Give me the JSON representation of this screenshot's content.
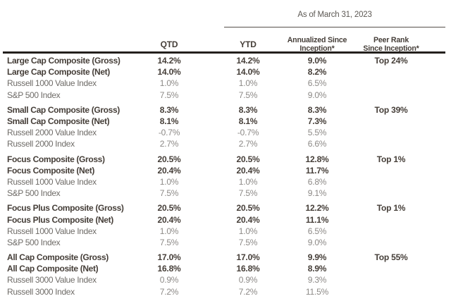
{
  "as_of_label": "As of March 31, 2023",
  "columns": {
    "qtd": "QTD",
    "ytd": "YTD",
    "annualized_line1": "Annualized Since",
    "annualized_line2": "Inception*",
    "peer_line1": "Peer Rank",
    "peer_line2": "Since Inception*"
  },
  "colors": {
    "text_dark": "#453e38",
    "text_gray": "#6f6c68",
    "value_gray": "#8c8986",
    "rule_heavy": "#24201d",
    "rule_light": "#55504b",
    "background": "#ffffff"
  },
  "groups": [
    {
      "rows": [
        {
          "label": "Large Cap Composite (Gross)",
          "style": "bold",
          "qtd": "14.2%",
          "ytd": "14.2%",
          "annualized": "9.0%",
          "peer_rank": "Top 24%"
        },
        {
          "label": "Large Cap Composite (Net)",
          "style": "bold",
          "qtd": "14.0%",
          "ytd": "14.0%",
          "annualized": "8.2%",
          "peer_rank": ""
        },
        {
          "label": "Russell 1000 Value Index",
          "style": "regular",
          "qtd": "1.0%",
          "ytd": "1.0%",
          "annualized": "6.5%",
          "peer_rank": ""
        },
        {
          "label": "S&P 500 Index",
          "style": "regular",
          "qtd": "7.5%",
          "ytd": "7.5%",
          "annualized": "9.0%",
          "peer_rank": ""
        }
      ]
    },
    {
      "rows": [
        {
          "label": "Small Cap Composite (Gross)",
          "style": "bold",
          "qtd": "8.3%",
          "ytd": "8.3%",
          "annualized": "8.3%",
          "peer_rank": "Top 39%"
        },
        {
          "label": "Small Cap Composite (Net)",
          "style": "bold",
          "qtd": "8.1%",
          "ytd": "8.1%",
          "annualized": "7.3%",
          "peer_rank": ""
        },
        {
          "label": "Russell 2000 Value Index",
          "style": "regular",
          "qtd": "-0.7%",
          "ytd": "-0.7%",
          "annualized": "5.5%",
          "peer_rank": ""
        },
        {
          "label": "Russell 2000 Index",
          "style": "regular",
          "qtd": "2.7%",
          "ytd": "2.7%",
          "annualized": "6.6%",
          "peer_rank": ""
        }
      ]
    },
    {
      "rows": [
        {
          "label": "Focus Composite (Gross)",
          "style": "bold",
          "qtd": "20.5%",
          "ytd": "20.5%",
          "annualized": "12.8%",
          "peer_rank": "Top 1%"
        },
        {
          "label": "Focus Composite (Net)",
          "style": "bold",
          "qtd": "20.4%",
          "ytd": "20.4%",
          "annualized": "11.7%",
          "peer_rank": ""
        },
        {
          "label": "Russell 1000 Value Index",
          "style": "regular",
          "qtd": "1.0%",
          "ytd": "1.0%",
          "annualized": "6.8%",
          "peer_rank": ""
        },
        {
          "label": "S&P 500 Index",
          "style": "regular",
          "qtd": "7.5%",
          "ytd": "7.5%",
          "annualized": "9.1%",
          "peer_rank": ""
        }
      ]
    },
    {
      "rows": [
        {
          "label": "Focus Plus Composite (Gross)",
          "style": "bold",
          "qtd": "20.5%",
          "ytd": "20.5%",
          "annualized": "12.2%",
          "peer_rank": "Top 1%"
        },
        {
          "label": "Focus Plus Composite (Net)",
          "style": "bold",
          "qtd": "20.4%",
          "ytd": "20.4%",
          "annualized": "11.1%",
          "peer_rank": ""
        },
        {
          "label": "Russell 1000 Value Index",
          "style": "regular",
          "qtd": "1.0%",
          "ytd": "1.0%",
          "annualized": "6.5%",
          "peer_rank": ""
        },
        {
          "label": "S&P 500 Index",
          "style": "regular",
          "qtd": "7.5%",
          "ytd": "7.5%",
          "annualized": "9.0%",
          "peer_rank": ""
        }
      ]
    },
    {
      "rows": [
        {
          "label": "All Cap Composite (Gross)",
          "style": "bold",
          "qtd": "17.0%",
          "ytd": "17.0%",
          "annualized": "9.9%",
          "peer_rank": "Top 55%"
        },
        {
          "label": "All Cap Composite (Net)",
          "style": "bold",
          "qtd": "16.8%",
          "ytd": "16.8%",
          "annualized": "8.9%",
          "peer_rank": ""
        },
        {
          "label": "Russell 3000 Value Index",
          "style": "regular",
          "qtd": "0.9%",
          "ytd": "0.9%",
          "annualized": "9.3%",
          "peer_rank": ""
        },
        {
          "label": "Russell 3000 Index",
          "style": "regular",
          "qtd": "7.2%",
          "ytd": "7.2%",
          "annualized": "11.5%",
          "peer_rank": ""
        }
      ]
    }
  ]
}
